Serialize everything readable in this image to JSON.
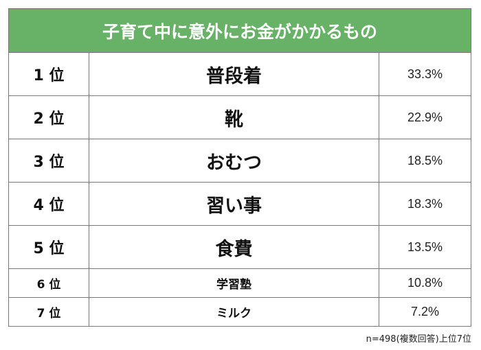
{
  "chart_data": {
    "type": "table",
    "title": "子育て中に意外にお金がかかるもの",
    "columns": [
      "rank",
      "item",
      "percent"
    ],
    "rows": [
      {
        "rank": "1 位",
        "item": "普段着",
        "value": "33.3%"
      },
      {
        "rank": "2 位",
        "item": "靴",
        "value": "22.9%"
      },
      {
        "rank": "3 位",
        "item": "おむつ",
        "value": "18.5%"
      },
      {
        "rank": "4 位",
        "item": "習い事",
        "value": "18.3%"
      },
      {
        "rank": "5 位",
        "item": "食費",
        "value": "13.5%"
      },
      {
        "rank": "6 位",
        "item": "学習塾",
        "value": "10.8%"
      },
      {
        "rank": "7 位",
        "item": "ミルク",
        "value": "7.2%"
      }
    ],
    "values": [
      33.3,
      22.9,
      18.5,
      18.3,
      13.5,
      10.8,
      7.2
    ],
    "unit": "%",
    "footnote": "n=498(複数回答)上位7位"
  },
  "colors": {
    "header_background": "#68b268",
    "header_text": "#ffffff",
    "border": "#777777"
  }
}
